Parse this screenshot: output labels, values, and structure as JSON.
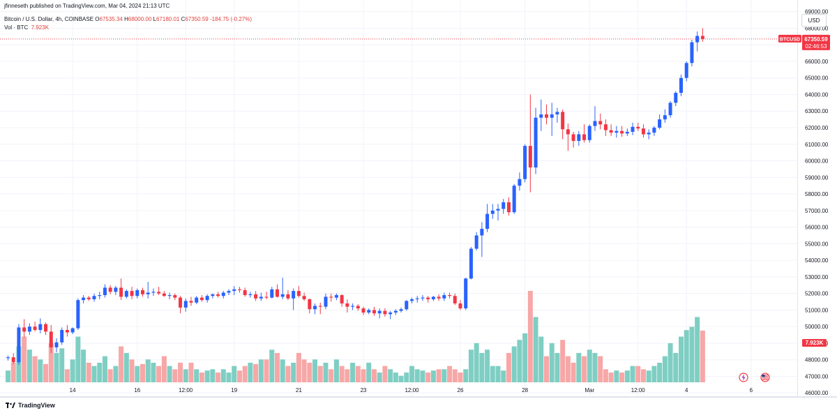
{
  "header": {
    "published": "jfinneseth published on TradingView.com, Mar 04, 2024 21:13 UTC",
    "symbol": "Bitcoin / U.S. Dollar, 4h, COINBASE",
    "ohlc": {
      "o_label": "O",
      "o": "67535.34",
      "h_label": "H",
      "h": "68000.00",
      "l_label": "L",
      "l": "67180.01",
      "c_label": "C",
      "c": "67350.59",
      "change": "-184.75 (-0.27%)"
    },
    "volume_label": "Vol · BTC",
    "volume_value": "7.923K"
  },
  "currency_button": "USD",
  "footer": {
    "brand": "TradingView"
  },
  "colors": {
    "up": "#2962ff",
    "down": "#f23645",
    "vol_up": "#7fcec3",
    "vol_down": "#f7a7a7",
    "price_tag": "#f23645",
    "vol_tag": "#f23645"
  },
  "chart_data": {
    "type": "candlestick",
    "timeframe": "4h",
    "ylim": [
      45800,
      69700
    ],
    "y_ticks": [
      46000,
      47000,
      48000,
      49000,
      50000,
      51000,
      52000,
      53000,
      54000,
      55000,
      56000,
      57000,
      58000,
      59000,
      60000,
      61000,
      62000,
      63000,
      64000,
      65000,
      66000,
      67000,
      68000,
      69000
    ],
    "x_ticks": [
      {
        "label": "14",
        "index": 12
      },
      {
        "label": "16",
        "index": 24
      },
      {
        "label": "12:00",
        "index": 33
      },
      {
        "label": "19",
        "index": 42
      },
      {
        "label": "21",
        "index": 54
      },
      {
        "label": "23",
        "index": 66
      },
      {
        "label": "12:00",
        "index": 75
      },
      {
        "label": "26",
        "index": 84
      },
      {
        "label": "28",
        "index": 96
      },
      {
        "label": "Mar",
        "index": 108
      },
      {
        "label": "12:00",
        "index": 117
      },
      {
        "label": "4",
        "index": 126
      },
      {
        "label": "6",
        "index": 138
      }
    ],
    "last_price": {
      "label": "BTCUSD",
      "value": "67350.59",
      "countdown": "02:46:53",
      "y": 67350.59
    },
    "last_volume": {
      "value": "7.923K"
    },
    "candles": [
      [
        48100,
        48250,
        47950,
        48150,
        1.8
      ],
      [
        48150,
        48400,
        47750,
        47850,
        3.0
      ],
      [
        47850,
        50150,
        47700,
        49950,
        5.5
      ],
      [
        49950,
        50450,
        49350,
        49700,
        7.0
      ],
      [
        49700,
        50200,
        49500,
        50000,
        5.0
      ],
      [
        50000,
        50300,
        49700,
        49800,
        4.0
      ],
      [
        49800,
        50500,
        49600,
        50150,
        3.5
      ],
      [
        50150,
        50250,
        49500,
        49700,
        2.8
      ],
      [
        49700,
        50100,
        48400,
        48750,
        6.0
      ],
      [
        48750,
        49300,
        48450,
        49050,
        4.5
      ],
      [
        49050,
        49950,
        48900,
        49800,
        5.2
      ],
      [
        49800,
        50100,
        49400,
        49650,
        2.0
      ],
      [
        49650,
        49950,
        49550,
        49900,
        3.5
      ],
      [
        49900,
        51700,
        49800,
        51600,
        7.0
      ],
      [
        51600,
        51900,
        51400,
        51750,
        5.0
      ],
      [
        51750,
        51850,
        51550,
        51650,
        3.0
      ],
      [
        51650,
        52000,
        51500,
        51850,
        2.5
      ],
      [
        51850,
        52100,
        51650,
        51900,
        3.0
      ],
      [
        51900,
        52550,
        51750,
        52350,
        4.0
      ],
      [
        52350,
        52500,
        51950,
        52100,
        2.0
      ],
      [
        52100,
        52450,
        51900,
        52350,
        2.5
      ],
      [
        52350,
        52900,
        51600,
        51800,
        5.5
      ],
      [
        51800,
        52250,
        51700,
        52150,
        4.5
      ],
      [
        52150,
        52400,
        51650,
        51850,
        3.5
      ],
      [
        51850,
        52300,
        51700,
        52200,
        2.5
      ],
      [
        52200,
        52350,
        51800,
        51950,
        2.8
      ],
      [
        51950,
        52700,
        51700,
        52050,
        3.5
      ],
      [
        52050,
        52300,
        51850,
        52100,
        3.0
      ],
      [
        52100,
        52400,
        51900,
        52000,
        2.5
      ],
      [
        52000,
        52150,
        51800,
        51850,
        4.0
      ],
      [
        51850,
        52050,
        51650,
        51900,
        2.5
      ],
      [
        51900,
        52000,
        51600,
        51750,
        2.0
      ],
      [
        51750,
        51850,
        50800,
        51150,
        3.0
      ],
      [
        51150,
        51700,
        50900,
        51550,
        2.0
      ],
      [
        51550,
        51800,
        51250,
        51450,
        3.0
      ],
      [
        51450,
        51850,
        51350,
        51750,
        2.0
      ],
      [
        51750,
        51900,
        51500,
        51600,
        1.5
      ],
      [
        51600,
        51950,
        51450,
        51850,
        1.8
      ],
      [
        51850,
        52000,
        51700,
        51950,
        2.0
      ],
      [
        51950,
        52100,
        51750,
        51850,
        1.5
      ],
      [
        51850,
        52150,
        51700,
        52050,
        2.0
      ],
      [
        52050,
        52250,
        51900,
        52150,
        1.5
      ],
      [
        52150,
        52450,
        51900,
        52250,
        2.5
      ],
      [
        52250,
        52400,
        52050,
        52200,
        1.8
      ],
      [
        52200,
        52350,
        51800,
        51900,
        2.5
      ],
      [
        51900,
        52100,
        51750,
        51950,
        3.0
      ],
      [
        51950,
        52150,
        51550,
        51700,
        2.8
      ],
      [
        51700,
        52050,
        51550,
        51800,
        3.5
      ],
      [
        51800,
        52100,
        51650,
        51750,
        3.5
      ],
      [
        51750,
        52400,
        51700,
        52250,
        5.0
      ],
      [
        52250,
        52550,
        51750,
        51800,
        4.5
      ],
      [
        51800,
        52950,
        51650,
        51950,
        3.5
      ],
      [
        51950,
        52200,
        51600,
        51700,
        2.5
      ],
      [
        51700,
        52300,
        51000,
        52150,
        3.0
      ],
      [
        52150,
        52450,
        51750,
        51850,
        4.5
      ],
      [
        51850,
        52050,
        51550,
        51650,
        3.5
      ],
      [
        51650,
        51700,
        50800,
        51050,
        3.0
      ],
      [
        51050,
        51400,
        50750,
        51250,
        3.5
      ],
      [
        51250,
        51450,
        50750,
        51200,
        2.5
      ],
      [
        51200,
        52000,
        51050,
        51800,
        3.0
      ],
      [
        51800,
        52000,
        51500,
        51750,
        2.0
      ],
      [
        51750,
        52000,
        51600,
        51900,
        3.5
      ],
      [
        51900,
        51950,
        51200,
        51400,
        2.5
      ],
      [
        51400,
        51650,
        50850,
        51200,
        2.0
      ],
      [
        51200,
        51400,
        51000,
        51250,
        3.0
      ],
      [
        51250,
        51350,
        50950,
        51100,
        2.5
      ],
      [
        51100,
        51200,
        50700,
        50850,
        2.0
      ],
      [
        50850,
        51100,
        50750,
        51000,
        3.0
      ],
      [
        51000,
        51200,
        50650,
        50800,
        2.0
      ],
      [
        50800,
        51100,
        50500,
        50950,
        1.5
      ],
      [
        50950,
        51100,
        50600,
        50750,
        2.5
      ],
      [
        50750,
        50950,
        50450,
        50850,
        2.0
      ],
      [
        50850,
        51050,
        50700,
        50950,
        1.5
      ],
      [
        50950,
        51150,
        50850,
        51050,
        1.0
      ],
      [
        51050,
        51600,
        50950,
        51550,
        1.5
      ],
      [
        51550,
        51750,
        51400,
        51650,
        2.5
      ],
      [
        51650,
        51850,
        51450,
        51700,
        2.0
      ],
      [
        51700,
        51900,
        51550,
        51750,
        1.8
      ],
      [
        51750,
        51850,
        51450,
        51650,
        1.5
      ],
      [
        51650,
        51850,
        51550,
        51800,
        1.8
      ],
      [
        51800,
        51950,
        51550,
        51700,
        2.0
      ],
      [
        51700,
        52050,
        51550,
        51900,
        2.0
      ],
      [
        51900,
        52050,
        51700,
        51850,
        2.5
      ],
      [
        51850,
        52000,
        51300,
        51400,
        2.0
      ],
      [
        51400,
        51600,
        51000,
        51100,
        1.5
      ],
      [
        51100,
        52950,
        51000,
        52900,
        2.0
      ],
      [
        52900,
        54800,
        52850,
        54700,
        5.0
      ],
      [
        54700,
        55700,
        54600,
        55500,
        6.0
      ],
      [
        55500,
        56300,
        54200,
        55900,
        4.5
      ],
      [
        55900,
        57400,
        55700,
        56800,
        5.0
      ],
      [
        56800,
        57400,
        56500,
        57000,
        2.5
      ],
      [
        57000,
        57400,
        56400,
        57100,
        2.5
      ],
      [
        57100,
        57700,
        56800,
        57500,
        1.8
      ],
      [
        57500,
        57800,
        56700,
        56900,
        4.5
      ],
      [
        56900,
        58600,
        56800,
        58500,
        5.5
      ],
      [
        58500,
        59300,
        58200,
        58900,
        6.5
      ],
      [
        58900,
        61000,
        58700,
        60900,
        7.5
      ],
      [
        60900,
        64000,
        58100,
        59600,
        14.0
      ],
      [
        59600,
        63200,
        59200,
        62600,
        10.0
      ],
      [
        62600,
        63700,
        61800,
        62800,
        7.0
      ],
      [
        62800,
        63400,
        62200,
        62600,
        4.0
      ],
      [
        62600,
        63500,
        61500,
        62800,
        6.0
      ],
      [
        62800,
        63200,
        62300,
        62950,
        4.5
      ],
      [
        62950,
        63100,
        61300,
        61900,
        6.5
      ],
      [
        61900,
        62250,
        60600,
        61600,
        4.0
      ],
      [
        61600,
        61750,
        60800,
        61200,
        3.0
      ],
      [
        61200,
        61800,
        60900,
        61600,
        4.5
      ],
      [
        61600,
        62200,
        61100,
        61250,
        4.0
      ],
      [
        61250,
        62200,
        61100,
        62100,
        5.0
      ],
      [
        62100,
        63300,
        61800,
        62400,
        4.5
      ],
      [
        62400,
        62850,
        61900,
        62200,
        4.0
      ],
      [
        62200,
        62500,
        61500,
        61850,
        2.0
      ],
      [
        61850,
        62200,
        61500,
        61700,
        1.5
      ],
      [
        61700,
        62100,
        61400,
        61800,
        1.8
      ],
      [
        61800,
        62100,
        61450,
        61650,
        1.5
      ],
      [
        61650,
        61950,
        61500,
        61750,
        1.8
      ],
      [
        61750,
        62300,
        61550,
        62050,
        2.5
      ],
      [
        62050,
        62300,
        61800,
        61950,
        2.5
      ],
      [
        61950,
        62200,
        61400,
        61600,
        2.0
      ],
      [
        61600,
        61900,
        61300,
        61700,
        1.8
      ],
      [
        61700,
        62100,
        61500,
        62000,
        2.5
      ],
      [
        62000,
        62800,
        61900,
        62500,
        3.0
      ],
      [
        62500,
        63100,
        62300,
        62750,
        4.0
      ],
      [
        62750,
        63600,
        62600,
        63500,
        6.0
      ],
      [
        63500,
        64200,
        63300,
        64100,
        4.5
      ],
      [
        64100,
        65200,
        63900,
        65000,
        7.0
      ],
      [
        65000,
        66000,
        64800,
        65900,
        8.0
      ],
      [
        65900,
        67300,
        65700,
        67150,
        8.5
      ],
      [
        67150,
        67800,
        66600,
        67535,
        10.0
      ],
      [
        67535.34,
        68000,
        67180.01,
        67350.59,
        7.923
      ]
    ]
  }
}
